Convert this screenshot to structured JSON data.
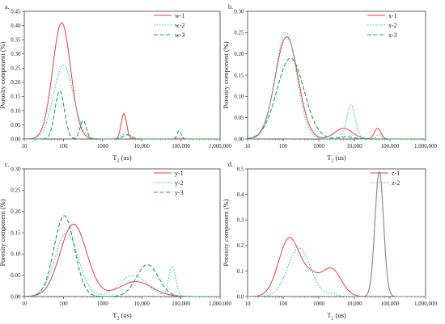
{
  "figure": {
    "background": "#ffffff",
    "colors": {
      "solid": "#ef3b3b",
      "dotted": "#33c7c2",
      "dashed": "#1f9e57"
    }
  },
  "chart_data": [
    {
      "id": "a",
      "panel_label": "a.",
      "type": "line",
      "x_scale": "log",
      "xlabel_main": "T",
      "xlabel_sub": "2",
      "xlabel_unit": " (us)",
      "ylabel": "Porosity component (%)",
      "xlim": [
        10,
        1000000
      ],
      "ylim": [
        0,
        0.45
      ],
      "x_ticks": [
        10,
        100,
        1000,
        10000,
        100000,
        1000000
      ],
      "x_tick_labels": [
        "10",
        "100",
        "1000",
        "10,000",
        "100,000",
        "1,000,000"
      ],
      "y_ticks": [
        0,
        0.05,
        0.1,
        0.15,
        0.2,
        0.25,
        0.3,
        0.35,
        0.4,
        0.45
      ],
      "y_tick_labels": [
        "0.00",
        "0.05",
        "0.10",
        "0.15",
        "0.20",
        "0.25",
        "0.30",
        "0.35",
        "0.40",
        "0.45"
      ],
      "legend_position": "top-right",
      "series": [
        {
          "name": "w-1",
          "style": "solid",
          "peaks": [
            {
              "center": 90,
              "amplitude": 0.41,
              "width": 0.23
            },
            {
              "center": 3500,
              "amplitude": 0.09,
              "width": 0.07
            }
          ]
        },
        {
          "name": "w-2",
          "style": "dotted",
          "peaks": [
            {
              "center": 100,
              "amplitude": 0.26,
              "width": 0.25
            },
            {
              "center": 4000,
              "amplitude": 0.02,
              "width": 0.12
            },
            {
              "center": 90000,
              "amplitude": 0.005,
              "width": 0.08
            }
          ]
        },
        {
          "name": "w-3",
          "style": "dashed",
          "peaks": [
            {
              "center": 80,
              "amplitude": 0.17,
              "width": 0.12
            },
            {
              "center": 320,
              "amplitude": 0.065,
              "width": 0.08
            },
            {
              "center": 4200,
              "amplitude": 0.015,
              "width": 0.1
            },
            {
              "center": 90000,
              "amplitude": 0.03,
              "width": 0.05
            }
          ]
        }
      ]
    },
    {
      "id": "b",
      "panel_label": "b.",
      "type": "line",
      "x_scale": "log",
      "xlabel_main": "T",
      "xlabel_sub": "2",
      "xlabel_unit": " (us)",
      "ylabel": "Porosity component (%)",
      "xlim": [
        10,
        1000000
      ],
      "ylim": [
        0,
        0.3
      ],
      "x_ticks": [
        10,
        100,
        1000,
        10000,
        100000,
        1000000
      ],
      "x_tick_labels": [
        "10",
        "100",
        "1000",
        "10,000",
        "100,000",
        "1,000,000"
      ],
      "y_ticks": [
        0,
        0.05,
        0.1,
        0.15,
        0.2,
        0.25,
        0.3
      ],
      "y_tick_labels": [
        "0.00",
        "0.05",
        "0.10",
        "0.15",
        "0.20",
        "0.25",
        "0.30"
      ],
      "legend_position": "top-right",
      "series": [
        {
          "name": "x-1",
          "style": "solid",
          "peaks": [
            {
              "center": 125,
              "amplitude": 0.24,
              "width": 0.32
            },
            {
              "center": 5000,
              "amplitude": 0.025,
              "width": 0.25
            },
            {
              "center": 45000,
              "amplitude": 0.025,
              "width": 0.09
            }
          ]
        },
        {
          "name": "x-2",
          "style": "dotted",
          "peaks": [
            {
              "center": 120,
              "amplitude": 0.25,
              "width": 0.3
            },
            {
              "center": 8000,
              "amplitude": 0.08,
              "width": 0.12
            },
            {
              "center": 50000,
              "amplitude": 0.01,
              "width": 0.08
            }
          ]
        },
        {
          "name": "x-3",
          "style": "dashed",
          "peaks": [
            {
              "center": 160,
              "amplitude": 0.19,
              "width": 0.38
            },
            {
              "center": 6000,
              "amplitude": 0.005,
              "width": 0.2
            }
          ]
        }
      ]
    },
    {
      "id": "c",
      "panel_label": "c.",
      "type": "line",
      "x_scale": "log",
      "xlabel_main": "T",
      "xlabel_sub": "2",
      "xlabel_unit": " (us)",
      "ylabel": "Porosity component (%)",
      "xlim": [
        10,
        1000000
      ],
      "ylim": [
        0,
        0.3
      ],
      "x_ticks": [
        10,
        100,
        1000,
        10000,
        100000,
        1000000
      ],
      "x_tick_labels": [
        "10",
        "100",
        "1000",
        "10,000",
        "100,000",
        "1,000,000"
      ],
      "y_ticks": [
        0,
        0.05,
        0.1,
        0.15,
        0.2,
        0.25,
        0.3
      ],
      "y_tick_labels": [
        "0.00",
        "0.05",
        "0.10",
        "0.15",
        "0.20",
        "0.25",
        "0.30"
      ],
      "legend_position": "top-right",
      "series": [
        {
          "name": "y-1",
          "style": "solid",
          "peaks": [
            {
              "center": 180,
              "amplitude": 0.17,
              "width": 0.34
            },
            {
              "center": 7000,
              "amplitude": 0.035,
              "width": 0.42
            }
          ]
        },
        {
          "name": "y-2",
          "style": "dotted",
          "peaks": [
            {
              "center": 120,
              "amplitude": 0.15,
              "width": 0.3
            },
            {
              "center": 6000,
              "amplitude": 0.05,
              "width": 0.35
            },
            {
              "center": 60000,
              "amplitude": 0.07,
              "width": 0.09
            }
          ]
        },
        {
          "name": "y-3",
          "style": "dashed",
          "peaks": [
            {
              "center": 105,
              "amplitude": 0.19,
              "width": 0.26
            },
            {
              "center": 14000,
              "amplitude": 0.075,
              "width": 0.28
            }
          ]
        }
      ]
    },
    {
      "id": "d",
      "panel_label": "d.",
      "type": "line",
      "x_scale": "log",
      "xlabel_main": "T",
      "xlabel_sub": "2",
      "xlabel_unit": " (us)",
      "ylabel": "Porosity component (%)",
      "xlim": [
        10,
        1000000
      ],
      "ylim": [
        0,
        0.5
      ],
      "x_ticks": [
        10,
        100,
        1000,
        10000,
        100000,
        1000000
      ],
      "x_tick_labels": [
        "10",
        "100",
        "1000",
        "10,000",
        "100,000",
        "1,000,000"
      ],
      "y_ticks": [
        0,
        0.1,
        0.2,
        0.3,
        0.4,
        0.5
      ],
      "y_tick_labels": [
        "0.0",
        "0.1",
        "0.2",
        "0.3",
        "0.4",
        "0.5"
      ],
      "legend_position": "top-left",
      "series": [
        {
          "name": "z-1",
          "style": "solid",
          "peaks": [
            {
              "center": 150,
              "amplitude": 0.23,
              "width": 0.3
            },
            {
              "center": 600,
              "amplitude": 0.06,
              "width": 0.22
            },
            {
              "center": 2200,
              "amplitude": 0.11,
              "width": 0.28
            },
            {
              "center": 50000,
              "amplitude": 0.49,
              "width": 0.12
            }
          ]
        },
        {
          "name": "z-2",
          "style": "dotted",
          "peaks": [
            {
              "center": 280,
              "amplitude": 0.19,
              "width": 0.32
            },
            {
              "center": 2200,
              "amplitude": 0.01,
              "width": 0.15
            },
            {
              "center": 50000,
              "amplitude": 0.49,
              "width": 0.12
            }
          ]
        }
      ]
    }
  ]
}
